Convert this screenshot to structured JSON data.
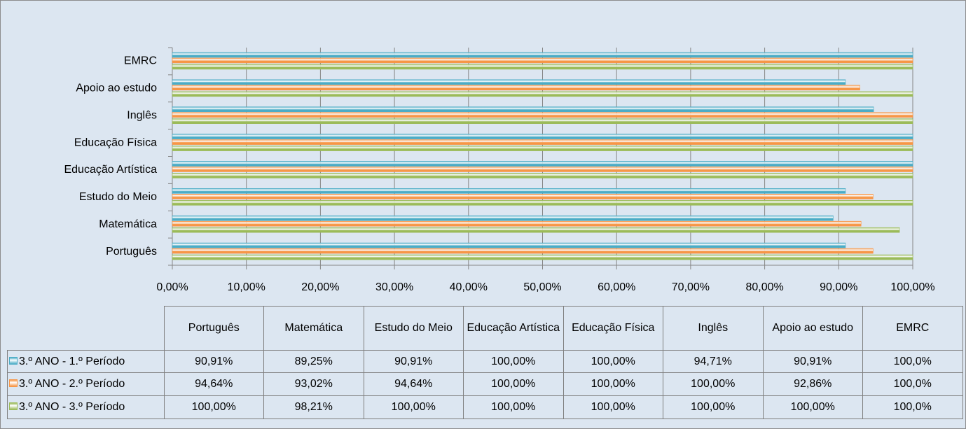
{
  "chart_data": {
    "type": "hbar",
    "categories": [
      "Português",
      "Matemática",
      "Estudo do Meio",
      "Educação Artística",
      "Educação Física",
      "Inglês",
      "Apoio ao estudo",
      "EMRC"
    ],
    "series": [
      {
        "name": "3.º ANO - 1.º Período",
        "color": "#4bacc6",
        "values": [
          90.91,
          89.25,
          90.91,
          100,
          100,
          94.71,
          90.91,
          100
        ],
        "value_labels": [
          "90,91%",
          "89,25%",
          "90,91%",
          "100,00%",
          "100,00%",
          "94,71%",
          "90,91%",
          "100,0%"
        ]
      },
      {
        "name": "3.º ANO - 2.º Período",
        "color": "#f79646",
        "values": [
          94.64,
          93.02,
          94.64,
          100,
          100,
          100,
          92.86,
          100
        ],
        "value_labels": [
          "94,64%",
          "93,02%",
          "94,64%",
          "100,00%",
          "100,00%",
          "100,00%",
          "92,86%",
          "100,0%"
        ]
      },
      {
        "name": "3.º ANO - 3.º Período",
        "color": "#9bbb59",
        "values": [
          100,
          98.21,
          100,
          100,
          100,
          100,
          100,
          100
        ],
        "value_labels": [
          "100,00%",
          "98,21%",
          "100,00%",
          "100,00%",
          "100,00%",
          "100,00%",
          "100,00%",
          "100,0%"
        ]
      }
    ],
    "xlim": [
      0,
      100
    ],
    "xticks": [
      {
        "value": 0,
        "label": "0,00%"
      },
      {
        "value": 10,
        "label": "10,00%"
      },
      {
        "value": 20,
        "label": "20,00%"
      },
      {
        "value": 30,
        "label": "30,00%"
      },
      {
        "value": 40,
        "label": "40,00%"
      },
      {
        "value": 50,
        "label": "50,00%"
      },
      {
        "value": 60,
        "label": "60,00%"
      },
      {
        "value": 70,
        "label": "70,00%"
      },
      {
        "value": 80,
        "label": "80,00%"
      },
      {
        "value": 90,
        "label": "90,00%"
      },
      {
        "value": 100,
        "label": "100,00%"
      }
    ],
    "grid": true
  }
}
